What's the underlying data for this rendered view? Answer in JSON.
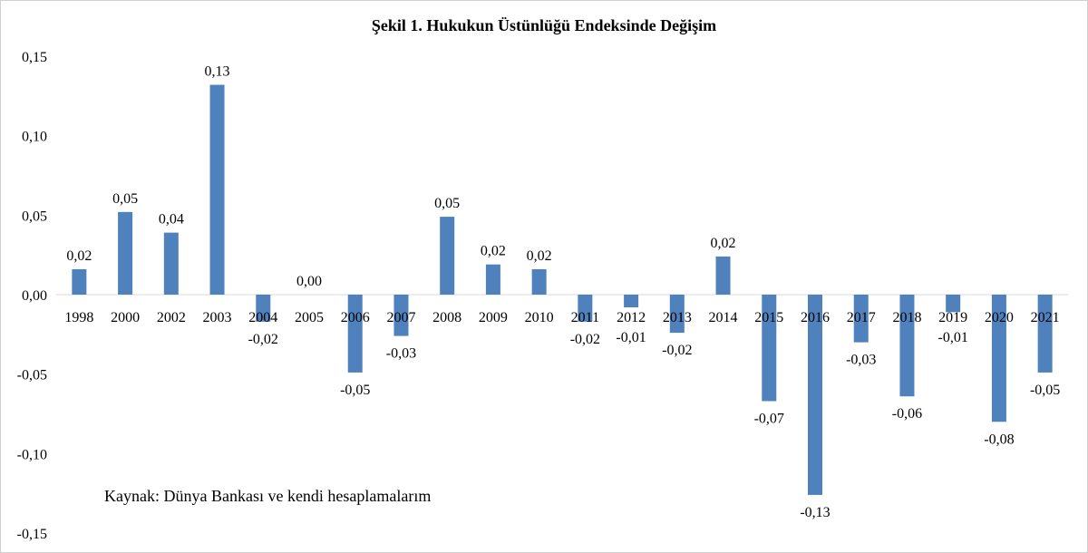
{
  "chart_data": {
    "type": "bar",
    "title": "Şekil 1. Hukukun  Üstünlüğü Endeksinde  Değişim",
    "xlabel": "",
    "ylabel": "",
    "ylim": [
      -0.15,
      0.15
    ],
    "ytick_values": [
      0.15,
      0.1,
      0.05,
      0.0,
      -0.05,
      -0.1,
      -0.15
    ],
    "ytick_labels": [
      "0,15",
      "0,10",
      "0,05",
      "0,00",
      "-0,05",
      "-0,10",
      "-0,15"
    ],
    "categories": [
      "1998",
      "2000",
      "2002",
      "2003",
      "2004",
      "2005",
      "2006",
      "2007",
      "2008",
      "2009",
      "2010",
      "2011",
      "2012",
      "2013",
      "2014",
      "2015",
      "2016",
      "2017",
      "2018",
      "2019",
      "2020",
      "2021"
    ],
    "values": [
      0.016,
      0.052,
      0.039,
      0.132,
      -0.017,
      0.0,
      -0.049,
      -0.026,
      0.049,
      0.019,
      0.016,
      -0.017,
      -0.008,
      -0.024,
      0.024,
      -0.067,
      -0.126,
      -0.03,
      -0.064,
      -0.011,
      -0.08,
      -0.049
    ],
    "data_labels": [
      "0,02",
      "0,05",
      "0,04",
      "0,13",
      "-0,02",
      "0,00",
      "-0,05",
      "-0,03",
      "0,05",
      "0,02",
      "0,02",
      "-0,02",
      "-0,01",
      "-0,02",
      "0,02",
      "-0,07",
      "-0,13",
      "-0,03",
      "-0,06",
      "-0,01",
      "-0,08",
      "-0,05"
    ],
    "bar_color": "#4f81bd",
    "axis_color": "#d9d9d9",
    "grid": false,
    "legend": "none",
    "source": "Kaynak:  Dünya Bankası ve kendi  hesaplamalarım"
  }
}
